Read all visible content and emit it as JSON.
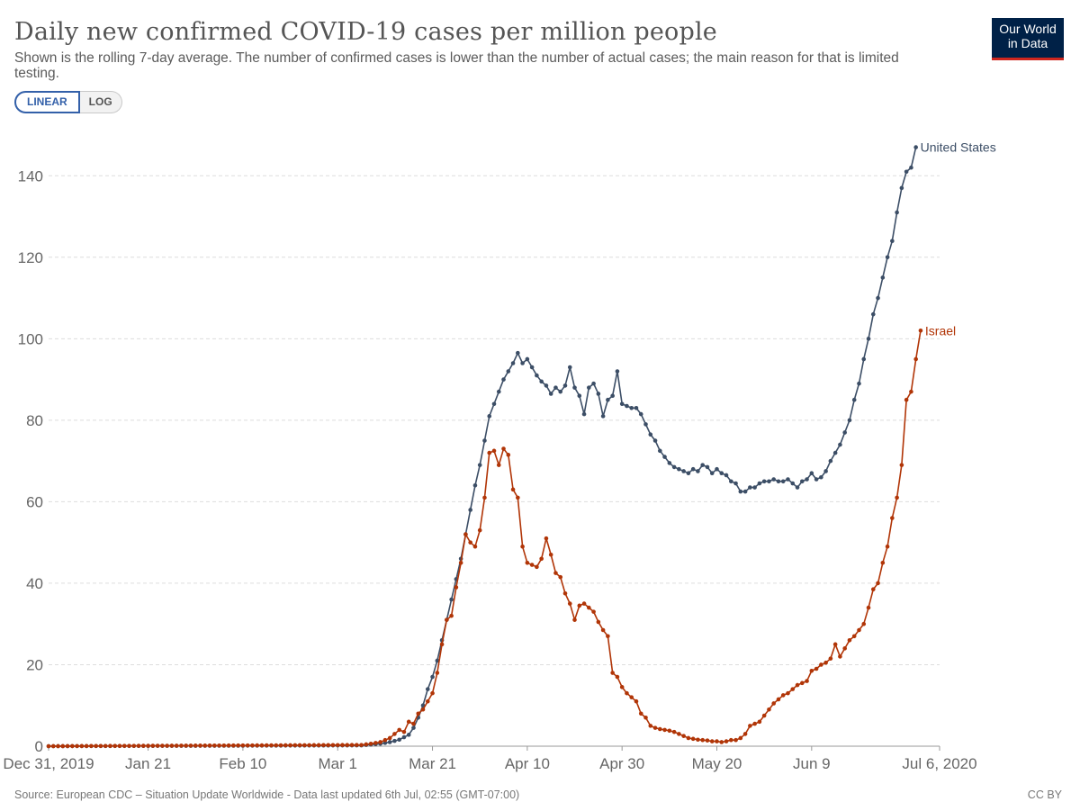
{
  "header": {
    "title": "Daily new confirmed COVID-19 cases per million people",
    "subtitle": "Shown is the rolling 7-day average. The number of confirmed cases is lower than the number of actual cases; the main reason for that is limited testing.",
    "logo_line1": "Our World",
    "logo_line2": "in Data"
  },
  "scale_toggle": {
    "linear_label": "LINEAR",
    "log_label": "LOG",
    "selected": "LINEAR"
  },
  "footer": {
    "source": "Source: European CDC – Situation Update Worldwide - Data last updated 6th Jul, 02:55 (GMT-07:00)",
    "license": "CC BY"
  },
  "colors": {
    "us": "#3c4e66",
    "israel": "#b13507",
    "grid": "#dddddd",
    "axis": "#999999"
  },
  "chart_data": {
    "type": "line",
    "title": "Daily new confirmed COVID-19 cases per million people",
    "xlabel": "",
    "ylabel": "",
    "x_start": "2019-12-31",
    "x_end": "2020-07-06",
    "ylim": [
      0,
      150
    ],
    "y_ticks": [
      0,
      20,
      40,
      60,
      80,
      100,
      120,
      140
    ],
    "x_ticks": [
      {
        "day": 0,
        "label": "Dec 31, 2019"
      },
      {
        "day": 21,
        "label": "Jan 21"
      },
      {
        "day": 41,
        "label": "Feb 10"
      },
      {
        "day": 61,
        "label": "Mar 1"
      },
      {
        "day": 81,
        "label": "Mar 21"
      },
      {
        "day": 101,
        "label": "Apr 10"
      },
      {
        "day": 121,
        "label": "Apr 30"
      },
      {
        "day": 141,
        "label": "May 20"
      },
      {
        "day": 161,
        "label": "Jun 9"
      },
      {
        "day": 188,
        "label": "Jul 6, 2020"
      }
    ],
    "grid": true,
    "series": [
      {
        "name": "United States",
        "color": "#3c4e66",
        "points": [
          [
            0,
            0
          ],
          [
            66,
            0.2
          ],
          [
            70,
            0.6
          ],
          [
            72,
            1.0
          ],
          [
            74,
            1.6
          ],
          [
            76,
            2.8
          ],
          [
            77,
            4.5
          ],
          [
            78,
            7
          ],
          [
            79,
            10
          ],
          [
            80,
            14
          ],
          [
            81,
            17
          ],
          [
            82,
            21
          ],
          [
            83,
            26
          ],
          [
            84,
            31
          ],
          [
            85,
            36
          ],
          [
            86,
            41
          ],
          [
            87,
            46
          ],
          [
            88,
            52
          ],
          [
            89,
            58
          ],
          [
            90,
            64
          ],
          [
            91,
            69
          ],
          [
            92,
            75
          ],
          [
            93,
            81
          ],
          [
            94,
            84
          ],
          [
            95,
            87
          ],
          [
            96,
            90
          ],
          [
            97,
            92
          ],
          [
            98,
            94
          ],
          [
            99,
            96.5
          ],
          [
            100,
            94
          ],
          [
            101,
            95
          ],
          [
            102,
            93
          ],
          [
            103,
            91
          ],
          [
            104,
            89.5
          ],
          [
            105,
            88.5
          ],
          [
            106,
            86.5
          ],
          [
            107,
            88
          ],
          [
            108,
            87
          ],
          [
            109,
            88.5
          ],
          [
            110,
            93
          ],
          [
            111,
            88
          ],
          [
            112,
            86
          ],
          [
            113,
            81.5
          ],
          [
            114,
            88
          ],
          [
            115,
            89
          ],
          [
            116,
            86.5
          ],
          [
            117,
            81
          ],
          [
            118,
            85
          ],
          [
            119,
            86
          ],
          [
            120,
            92
          ],
          [
            121,
            84
          ],
          [
            122,
            83.5
          ],
          [
            123,
            83
          ],
          [
            124,
            83
          ],
          [
            125,
            81.5
          ],
          [
            126,
            79
          ],
          [
            127,
            76.5
          ],
          [
            128,
            75
          ],
          [
            129,
            72.5
          ],
          [
            130,
            71
          ],
          [
            131,
            69.5
          ],
          [
            132,
            68.5
          ],
          [
            133,
            68
          ],
          [
            134,
            67.5
          ],
          [
            135,
            67
          ],
          [
            136,
            68
          ],
          [
            137,
            67.5
          ],
          [
            138,
            69
          ],
          [
            139,
            68.5
          ],
          [
            140,
            67
          ],
          [
            141,
            68
          ],
          [
            142,
            67
          ],
          [
            143,
            66.5
          ],
          [
            144,
            65
          ],
          [
            145,
            64.5
          ],
          [
            146,
            62.5
          ],
          [
            147,
            62.5
          ],
          [
            148,
            63.5
          ],
          [
            149,
            63.5
          ],
          [
            150,
            64.5
          ],
          [
            151,
            65
          ],
          [
            152,
            65
          ],
          [
            153,
            65.5
          ],
          [
            154,
            65
          ],
          [
            155,
            65
          ],
          [
            156,
            65.5
          ],
          [
            157,
            64.5
          ],
          [
            158,
            63.5
          ],
          [
            159,
            65
          ],
          [
            160,
            65.5
          ],
          [
            161,
            67
          ],
          [
            162,
            65.5
          ],
          [
            163,
            66
          ],
          [
            164,
            67.5
          ],
          [
            165,
            70
          ],
          [
            166,
            72
          ],
          [
            167,
            74
          ],
          [
            168,
            77
          ],
          [
            169,
            80
          ],
          [
            170,
            85
          ],
          [
            171,
            89
          ],
          [
            172,
            95
          ],
          [
            173,
            100
          ],
          [
            174,
            106
          ],
          [
            175,
            110
          ],
          [
            176,
            115
          ],
          [
            177,
            120
          ],
          [
            178,
            124
          ],
          [
            179,
            131
          ],
          [
            180,
            137
          ],
          [
            181,
            141
          ],
          [
            182,
            142
          ],
          [
            183,
            147
          ]
        ]
      },
      {
        "name": "Israel",
        "color": "#b13507",
        "points": [
          [
            0,
            0
          ],
          [
            66,
            0.3
          ],
          [
            68,
            0.6
          ],
          [
            70,
            1.0
          ],
          [
            71,
            1.5
          ],
          [
            72,
            2.0
          ],
          [
            73,
            3.0
          ],
          [
            74,
            4.0
          ],
          [
            75,
            3.5
          ],
          [
            76,
            6
          ],
          [
            77,
            5.5
          ],
          [
            78,
            8
          ],
          [
            79,
            9
          ],
          [
            80,
            11
          ],
          [
            81,
            13
          ],
          [
            82,
            18
          ],
          [
            83,
            25
          ],
          [
            84,
            31
          ],
          [
            85,
            32
          ],
          [
            86,
            39
          ],
          [
            87,
            45
          ],
          [
            88,
            52
          ],
          [
            89,
            50
          ],
          [
            90,
            49
          ],
          [
            91,
            53
          ],
          [
            92,
            61
          ],
          [
            93,
            72
          ],
          [
            94,
            72.5
          ],
          [
            95,
            69
          ],
          [
            96,
            73
          ],
          [
            97,
            71.5
          ],
          [
            98,
            63
          ],
          [
            99,
            61
          ],
          [
            100,
            49
          ],
          [
            101,
            45
          ],
          [
            102,
            44.5
          ],
          [
            103,
            44
          ],
          [
            104,
            46
          ],
          [
            105,
            51
          ],
          [
            106,
            47
          ],
          [
            107,
            42.5
          ],
          [
            108,
            41.5
          ],
          [
            109,
            37.5
          ],
          [
            110,
            35
          ],
          [
            111,
            31
          ],
          [
            112,
            34.5
          ],
          [
            113,
            35
          ],
          [
            114,
            34
          ],
          [
            115,
            33
          ],
          [
            116,
            30.5
          ],
          [
            117,
            28.5
          ],
          [
            118,
            27
          ],
          [
            119,
            18
          ],
          [
            120,
            17
          ],
          [
            121,
            14.5
          ],
          [
            122,
            13
          ],
          [
            123,
            12
          ],
          [
            124,
            11
          ],
          [
            125,
            8
          ],
          [
            126,
            7
          ],
          [
            127,
            5
          ],
          [
            128,
            4.5
          ],
          [
            129,
            4.2
          ],
          [
            130,
            4
          ],
          [
            131,
            3.8
          ],
          [
            132,
            3.5
          ],
          [
            133,
            3
          ],
          [
            134,
            2.5
          ],
          [
            135,
            2
          ],
          [
            136,
            1.8
          ],
          [
            137,
            1.6
          ],
          [
            138,
            1.5
          ],
          [
            139,
            1.4
          ],
          [
            140,
            1.2
          ],
          [
            141,
            1.2
          ],
          [
            142,
            1.0
          ],
          [
            143,
            1.2
          ],
          [
            144,
            1.5
          ],
          [
            145,
            1.5
          ],
          [
            146,
            2
          ],
          [
            147,
            3
          ],
          [
            148,
            5
          ],
          [
            149,
            5.5
          ],
          [
            150,
            6
          ],
          [
            151,
            7.5
          ],
          [
            152,
            9
          ],
          [
            153,
            10.5
          ],
          [
            154,
            11.5
          ],
          [
            155,
            12.5
          ],
          [
            156,
            13
          ],
          [
            157,
            14
          ],
          [
            158,
            15
          ],
          [
            159,
            15.5
          ],
          [
            160,
            16
          ],
          [
            161,
            18.5
          ],
          [
            162,
            19
          ],
          [
            163,
            20
          ],
          [
            164,
            20.5
          ],
          [
            165,
            21.5
          ],
          [
            166,
            25
          ],
          [
            167,
            22
          ],
          [
            168,
            24
          ],
          [
            169,
            26
          ],
          [
            170,
            27
          ],
          [
            171,
            28.5
          ],
          [
            172,
            30
          ],
          [
            173,
            34
          ],
          [
            174,
            38.5
          ],
          [
            175,
            40
          ],
          [
            176,
            45
          ],
          [
            177,
            49
          ],
          [
            178,
            56
          ],
          [
            179,
            61
          ],
          [
            180,
            69
          ],
          [
            181,
            85
          ],
          [
            182,
            87
          ],
          [
            183,
            95
          ],
          [
            184,
            102
          ]
        ]
      }
    ]
  }
}
